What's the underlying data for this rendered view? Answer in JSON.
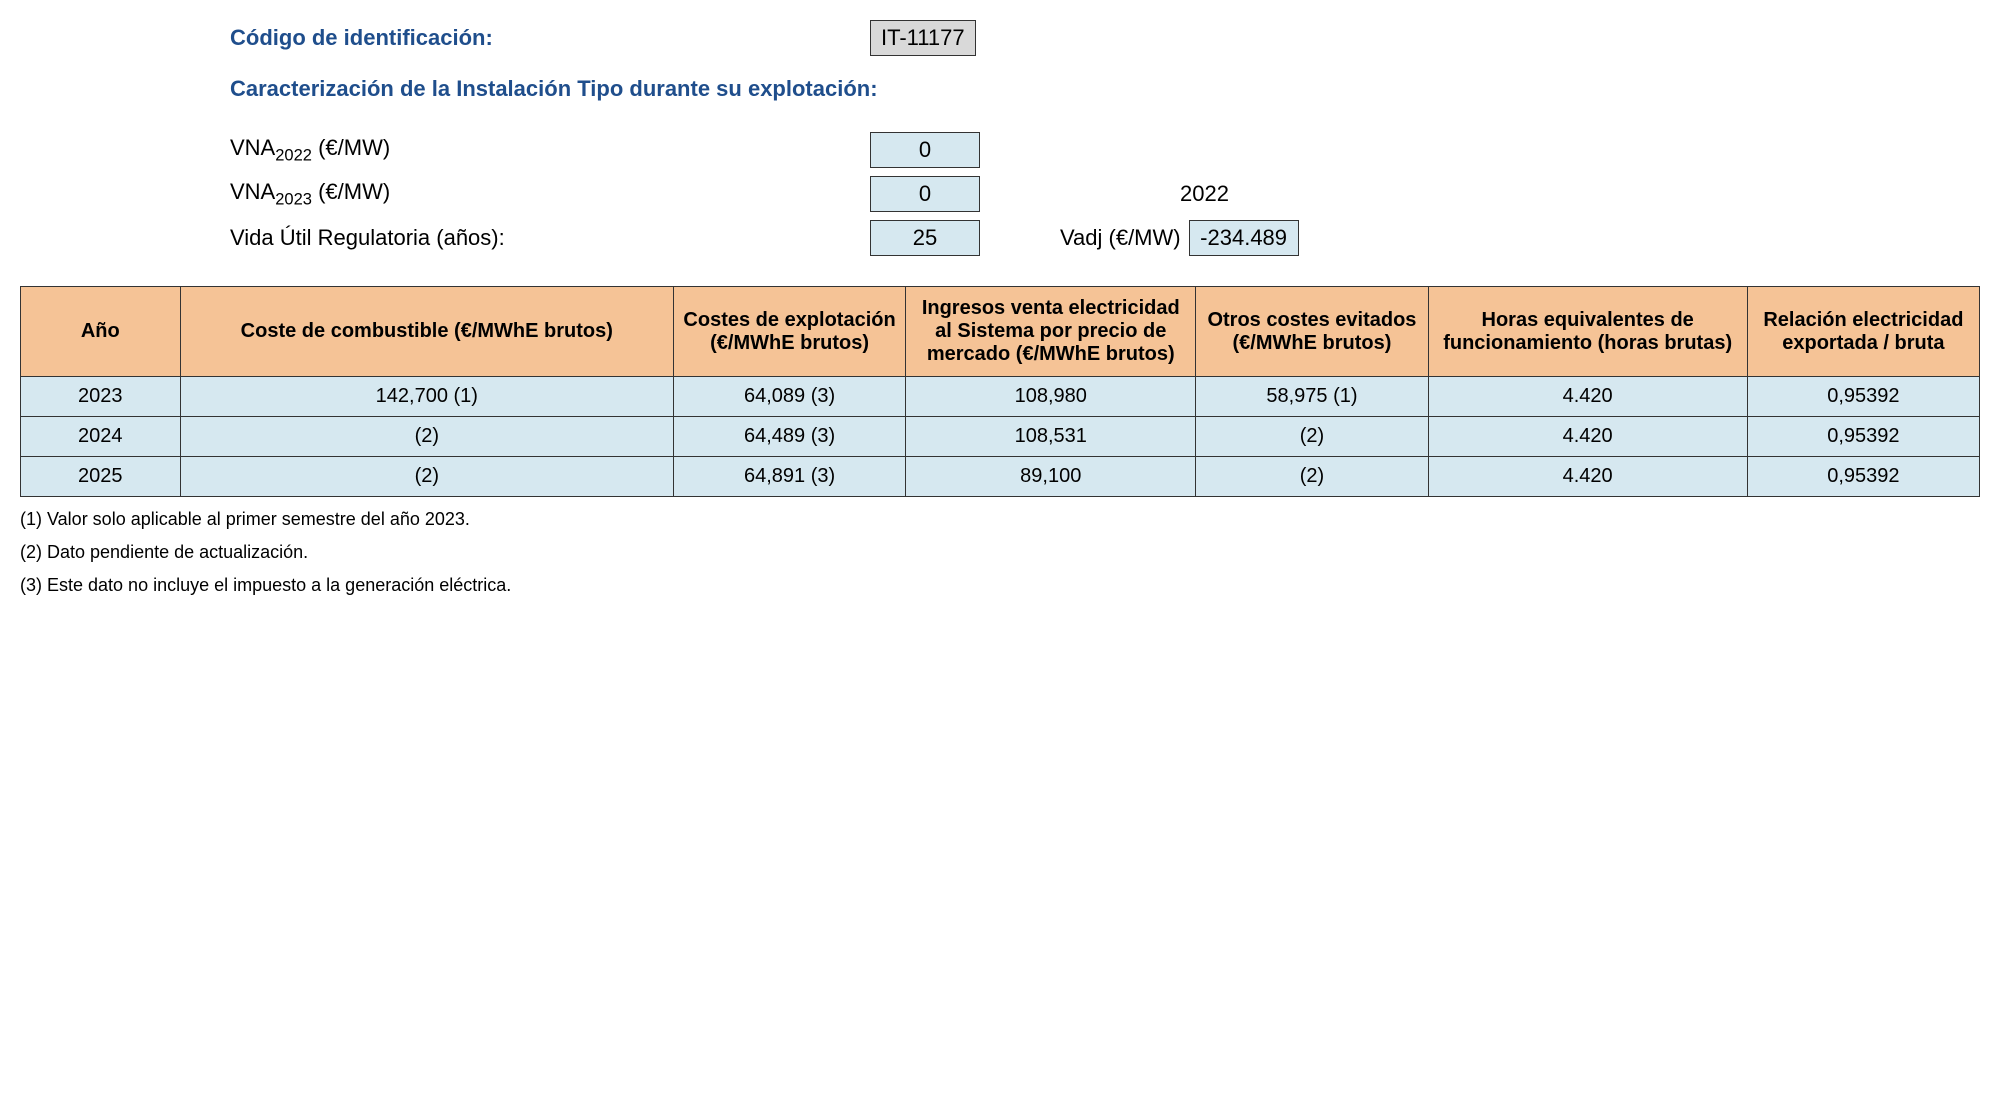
{
  "header": {
    "id_label": "Código de identificación:",
    "id_value": "IT-11177",
    "section_title": "Caracterización de la Instalación Tipo durante su explotación:",
    "vna_2022_label_prefix": "VNA",
    "vna_2022_sub": "2022",
    "vna_unit": " (€/MW)",
    "vna_2022_value": "0",
    "vna_2023_label_prefix": "VNA",
    "vna_2023_sub": "2023",
    "vna_2023_value": "0",
    "year_ref": "2022",
    "vida_label": "Vida Útil Regulatoria (años):",
    "vida_value": "25",
    "vadj_label": "Vadj (€/MW)",
    "vadj_value": "-234.489"
  },
  "table": {
    "columns": [
      "Año",
      "Coste de combustible (€/MWhE brutos)",
      "Costes de explotación (€/MWhE brutos)",
      "Ingresos venta electricidad al Sistema por precio de mercado (€/MWhE brutos)",
      "Otros costes evitados (€/MWhE brutos)",
      "Horas equivalentes de funcionamiento (horas brutas)",
      "Relación electricidad exportada / bruta"
    ],
    "rows": [
      {
        "year": "2023",
        "fuel": "142,700 (1)",
        "cost": "64,089 (3)",
        "rev": "108,980",
        "other": "58,975 (1)",
        "hours": "4.420",
        "rel": "0,95392"
      },
      {
        "year": "2024",
        "fuel": "(2)",
        "cost": "64,489 (3)",
        "rev": "108,531",
        "other": "(2)",
        "hours": "4.420",
        "rel": "0,95392"
      },
      {
        "year": "2025",
        "fuel": "(2)",
        "cost": "64,891 (3)",
        "rev": "89,100",
        "other": "(2)",
        "hours": "4.420",
        "rel": "0,95392"
      }
    ]
  },
  "footnotes": [
    "(1) Valor solo aplicable al primer semestre del año 2023.",
    "(2) Dato pendiente de actualización.",
    "(3) Este dato no incluye el impuesto a la generación eléctrica."
  ],
  "styling": {
    "header_bg": "#f5c396",
    "cell_bg": "#d6e8f0",
    "id_bg": "#d9d9d9",
    "blue_text": "#1f4e8c",
    "border_color": "#333333"
  }
}
